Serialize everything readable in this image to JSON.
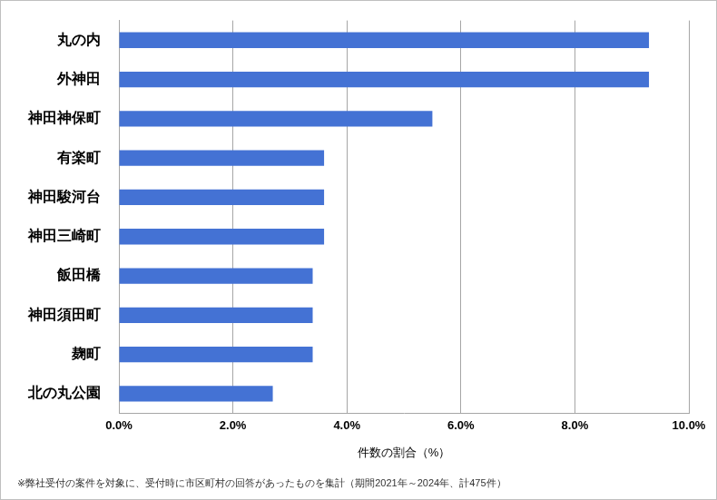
{
  "chart_data": {
    "type": "bar",
    "orientation": "horizontal",
    "categories": [
      "丸の内",
      "外神田",
      "神田神保町",
      "有楽町",
      "神田駿河台",
      "神田三崎町",
      "飯田橋",
      "神田須田町",
      "麹町",
      "北の丸公園"
    ],
    "values": [
      9.3,
      9.3,
      5.5,
      3.6,
      3.6,
      3.6,
      3.4,
      3.4,
      3.4,
      2.7
    ],
    "color": "#4472d4",
    "xlabel": "件数の割合（%）",
    "annotation": "※弊社受付の案件を対象に、受付時に市区町村の回答があったものを集計（期間2021年～2024年、計475件）",
    "xlim": [
      0,
      10
    ],
    "xticks": [
      {
        "value": 0,
        "label": "0.0%"
      },
      {
        "value": 2,
        "label": "2.0%"
      },
      {
        "value": 4,
        "label": "4.0%"
      },
      {
        "value": 6,
        "label": "6.0%"
      },
      {
        "value": 8,
        "label": "8.0%"
      },
      {
        "value": 10,
        "label": "10.0%"
      }
    ],
    "grid": true
  }
}
